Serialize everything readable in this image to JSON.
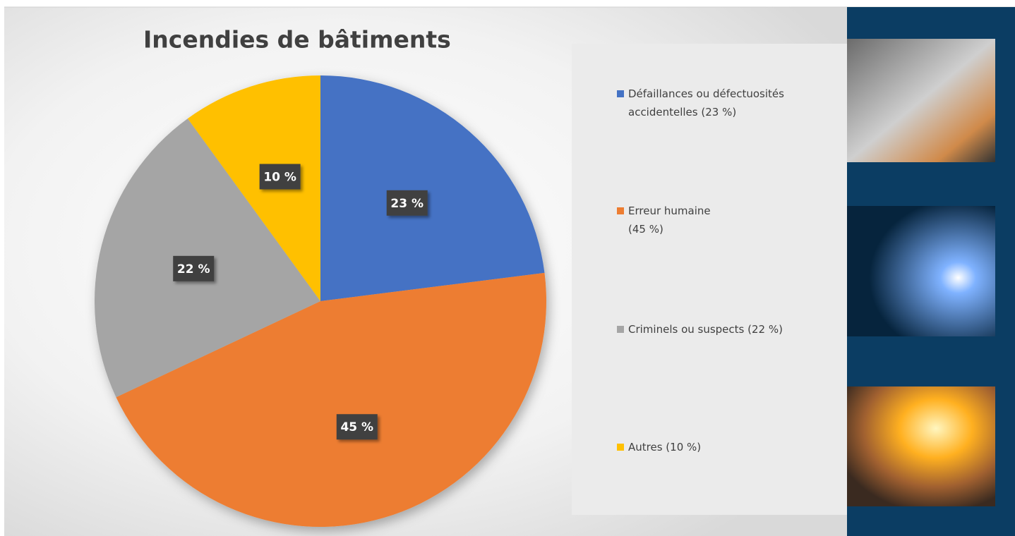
{
  "chart_data": {
    "type": "pie",
    "title": "Incendies de bâtiments",
    "categories": [
      "Défaillances ou défectuosités\naccidentelles (23 %)",
      "Erreur humaine\n(45 %)",
      "Criminels ou suspects (22 %)",
      "Autres (10 %)"
    ],
    "values": [
      23,
      45,
      22,
      10
    ],
    "value_labels": [
      "23 %",
      "45 %",
      "22 %",
      "10 %"
    ],
    "colors": [
      "#4472c4",
      "#ed7d31",
      "#a5a5a5",
      "#ffc000"
    ]
  }
}
